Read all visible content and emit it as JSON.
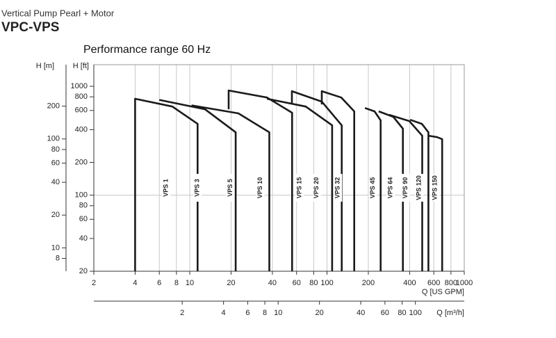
{
  "header": {
    "subtitle": "Vertical Pump Pearl + Motor",
    "title": "VPC-VPS"
  },
  "chart_data": {
    "type": "line",
    "title": "Performance range 60 Hz",
    "x_label": "Q [US GPM]",
    "x2_label": "Q [m³/h]",
    "y_label": "H [ft]",
    "y2_label": "H [m]",
    "log_scale": true,
    "xlim": [
      2,
      1000
    ],
    "xticks": [
      2,
      4,
      6,
      8,
      10,
      20,
      40,
      60,
      80,
      100,
      200,
      400,
      600,
      800,
      1000
    ],
    "x2lim": [
      0.454,
      227
    ],
    "x2ticks": [
      2,
      4,
      6,
      8,
      10,
      20,
      40,
      60,
      80,
      100
    ],
    "ylim": [
      20,
      1580
    ],
    "yticks": [
      20,
      40,
      60,
      80,
      100,
      200,
      400,
      600,
      800,
      1000
    ],
    "y2lim": [
      6.1,
      481
    ],
    "y2ticks": [
      8,
      10,
      20,
      40,
      60,
      80,
      100,
      200
    ],
    "hgrid": [
      100
    ],
    "color": "#1a1a1a",
    "series": [
      {
        "name": "VPS 1",
        "x": [
          4,
          4,
          7.47,
          11.4,
          11.4
        ],
        "values": [
          20,
          768,
          652,
          452,
          20
        ]
      },
      {
        "name": "VPS 3",
        "x": [
          6,
          12.9,
          21.6,
          21.6
        ],
        "values": [
          750,
          615,
          378,
          20
        ]
      },
      {
        "name": "VPS 5",
        "x": [
          10.3,
          22.6,
          38,
          38
        ],
        "values": [
          668,
          564,
          378,
          20
        ]
      },
      {
        "name": "VPS 10",
        "x": [
          19.2,
          19.2,
          36.5,
          55.7,
          55.7
        ],
        "values": [
          615,
          915,
          789,
          572,
          20
        ]
      },
      {
        "name": "VPS 15",
        "x": [
          36.5,
          70,
          109,
          109
        ],
        "values": [
          768,
          652,
          438,
          20
        ]
      },
      {
        "name": "VPS 20",
        "x": [
          55.5,
          55.5,
          91.6,
          128,
          128
        ],
        "values": [
          702,
          902,
          723,
          438,
          20
        ]
      },
      {
        "name": "VPS 32",
        "x": [
          91.6,
          91.6,
          127,
          158,
          158
        ],
        "values": [
          682,
          902,
          789,
          589,
          20
        ]
      },
      {
        "name": "VPS 45",
        "x": [
          189,
          222,
          246,
          246
        ],
        "values": [
          632,
          589,
          486,
          20
        ]
      },
      {
        "name": "VPS 64",
        "x": [
          238,
          304,
          357,
          357
        ],
        "values": [
          589,
          524,
          408,
          20
        ]
      },
      {
        "name": "VPS 90",
        "x": [
          284,
          398,
          494,
          494
        ],
        "values": [
          547,
          479,
          352,
          20
        ]
      },
      {
        "name": "VPS 120",
        "x": [
          403,
          491,
          548,
          548
        ],
        "values": [
          493,
          452,
          378,
          20
        ]
      },
      {
        "name": "VPS 150",
        "x": [
          548,
          634,
          690,
          690
        ],
        "values": [
          352,
          341,
          327,
          20
        ]
      }
    ]
  }
}
